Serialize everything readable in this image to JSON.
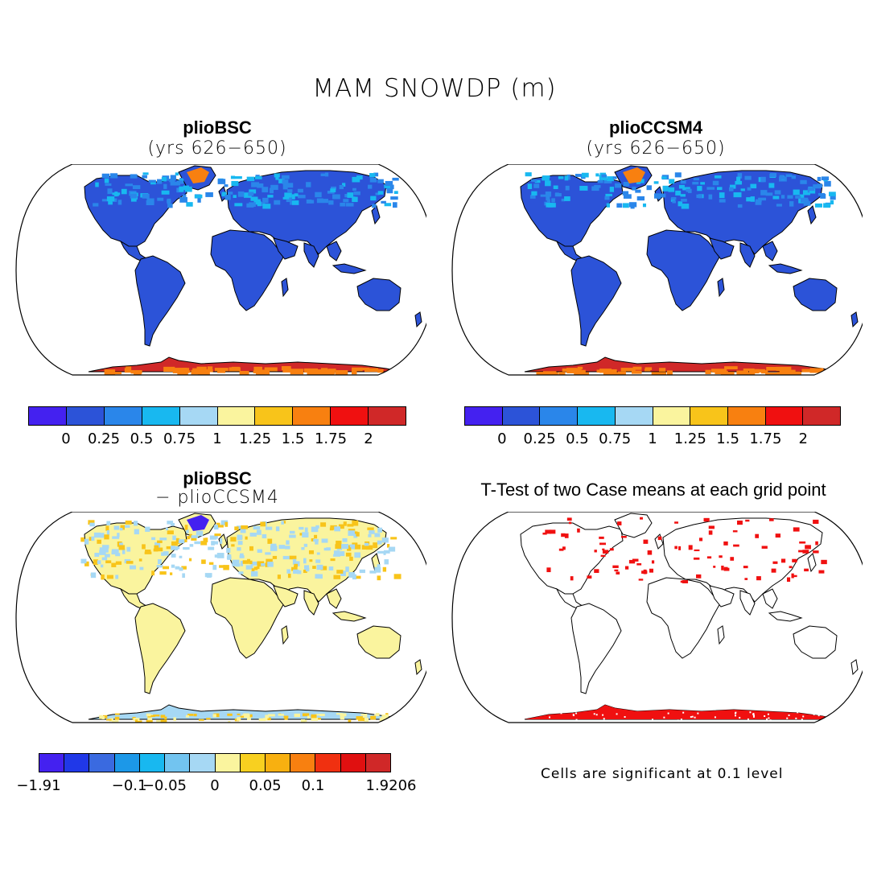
{
  "figure": {
    "title": "MAM SNOWDP (m)"
  },
  "panels": [
    {
      "id": "a",
      "title": "plioBSC",
      "subtitle": "(yrs 626−650)"
    },
    {
      "id": "b",
      "title": "plioCCSM4",
      "subtitle": "(yrs 626−650)"
    },
    {
      "id": "c",
      "title": "plioBSC",
      "subtitle": "− plioCCSM4"
    },
    {
      "id": "d",
      "title": "T-Test of two Case means at each grid point",
      "subtitle": ""
    }
  ],
  "colorbars": {
    "absolute": {
      "colors": [
        "#4421f0",
        "#2c53d8",
        "#2a86ea",
        "#18b8f0",
        "#a6d8f4",
        "#faf49e",
        "#f8c41a",
        "#f88010",
        "#f01010",
        "#d02828"
      ],
      "ticks": [
        "0",
        "0.25",
        "0.5",
        "0.75",
        "1",
        "1.25",
        "1.5",
        "1.75",
        "2"
      ]
    },
    "difference": {
      "colors": [
        "#4421f0",
        "#2038e8",
        "#3a6ae0",
        "#1c98e8",
        "#18b8f0",
        "#72c4f0",
        "#a6d8f4",
        "#faf49e",
        "#f8d020",
        "#f8b010",
        "#f88010",
        "#f03010",
        "#e01010",
        "#d02828"
      ],
      "ticks": [
        "−1.91",
        "−0.1",
        "−0.05",
        "0",
        "0.05",
        "0.1",
        "1.9206"
      ]
    }
  },
  "note": "Cells are significant at 0.1 level",
  "map_colors": {
    "land_low": "#2c53d8",
    "land_mid": "#2a86ea",
    "antarctica": "#d02828",
    "antarctica_high": "#f88010",
    "diff_land": "#faf49e",
    "diff_pos": "#f8c41a",
    "diff_neg": "#a6d8f4",
    "significant": "#f01010",
    "coast": "#000000"
  }
}
